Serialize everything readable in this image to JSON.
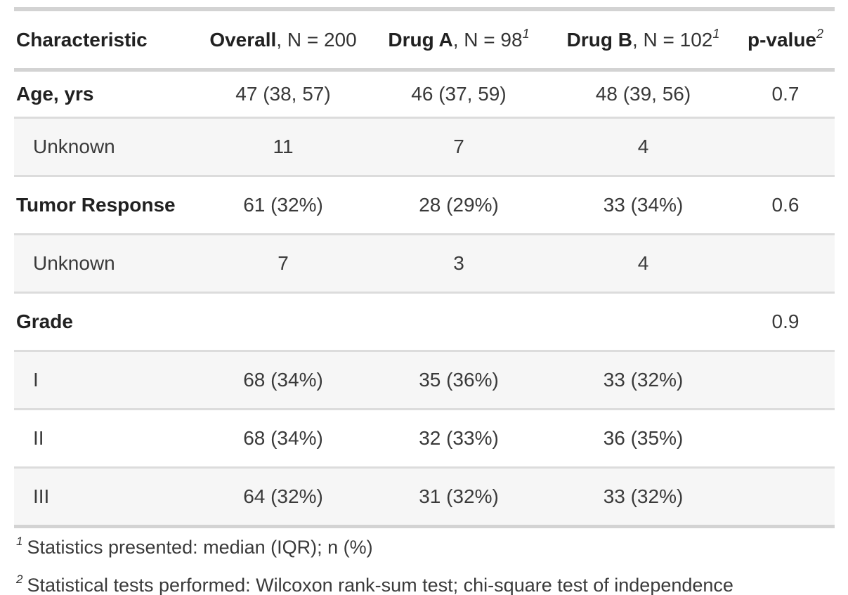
{
  "table": {
    "columns": [
      {
        "bold": "Characteristic",
        "rest": "",
        "mark": ""
      },
      {
        "bold": "Overall",
        "rest": ", N = 200",
        "mark": ""
      },
      {
        "bold": "Drug A",
        "rest": ", N = 98",
        "mark": "1"
      },
      {
        "bold": "Drug B",
        "rest": ", N = 102",
        "mark": "1"
      },
      {
        "bold": "p-value",
        "rest": "",
        "mark": "2"
      }
    ],
    "rows": [
      {
        "label": "Age, yrs",
        "cells": [
          "47 (38, 57)",
          "46 (37, 59)",
          "48 (39, 56)",
          "0.7"
        ]
      },
      {
        "label": "Unknown",
        "cells": [
          "11",
          "7",
          "4",
          ""
        ]
      },
      {
        "label": "Tumor Response",
        "cells": [
          "61 (32%)",
          "28 (29%)",
          "33 (34%)",
          "0.6"
        ]
      },
      {
        "label": "Unknown",
        "cells": [
          "7",
          "3",
          "4",
          ""
        ]
      },
      {
        "label": "Grade",
        "cells": [
          "",
          "",
          "",
          "0.9"
        ]
      },
      {
        "label": "I",
        "cells": [
          "68 (34%)",
          "35 (36%)",
          "33 (32%)",
          ""
        ]
      },
      {
        "label": "II",
        "cells": [
          "68 (34%)",
          "32 (33%)",
          "36 (35%)",
          ""
        ]
      },
      {
        "label": "III",
        "cells": [
          "64 (32%)",
          "31 (32%)",
          "33 (32%)",
          ""
        ]
      }
    ],
    "footnotes": [
      {
        "mark": "1",
        "text": "Statistics presented: median (IQR); n (%)"
      },
      {
        "mark": "2",
        "text": "Statistical tests performed: Wilcoxon rank-sum test; chi-square test of independence"
      }
    ],
    "colors": {
      "stripe": "#F6F6F6",
      "border_light": "#D3D3D3",
      "border_row": "#DCDCDC",
      "border_bottom": "#A8A8A8",
      "text": "#3A3A3A",
      "text_bold": "#212121"
    }
  }
}
